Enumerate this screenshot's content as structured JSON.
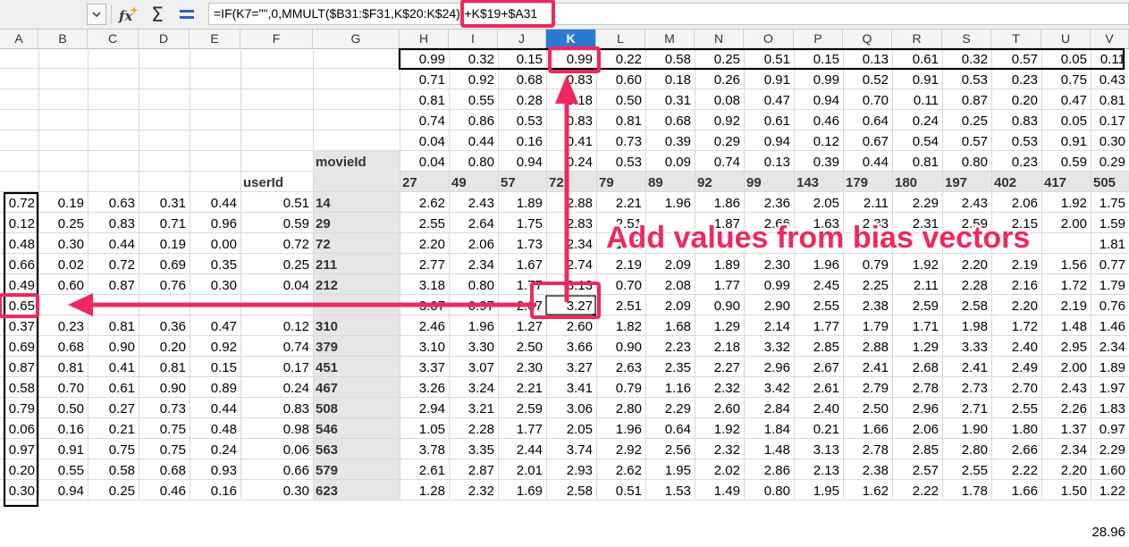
{
  "toolbar": {
    "formula": "=IF(K7=\"\",0,MMULT($B31:$F31,K$20:K$24))+K$19+$A31",
    "icons": [
      "name-box-dropdown-icon",
      "function-wizard-icon",
      "sum-icon",
      "formula-equals-icon"
    ]
  },
  "columns": [
    "A",
    "B",
    "C",
    "D",
    "E",
    "F",
    "G",
    "H",
    "I",
    "J",
    "K",
    "L",
    "M",
    "N",
    "O",
    "P",
    "Q",
    "R",
    "S",
    "T",
    "U",
    "V"
  ],
  "selected_column": "K",
  "labels": {
    "movie_id": "movieId",
    "user_id": "userId"
  },
  "movie_bias_row": [
    "0.99",
    "0.32",
    "0.15",
    "0.99",
    "0.22",
    "0.58",
    "0.25",
    "0.51",
    "0.15",
    "0.13",
    "0.61",
    "0.32",
    "0.57",
    "0.05",
    "0.11"
  ],
  "movie_factors": [
    [
      "0.71",
      "0.92",
      "0.68",
      "0.83",
      "0.60",
      "0.18",
      "0.26",
      "0.91",
      "0.99",
      "0.52",
      "0.91",
      "0.53",
      "0.23",
      "0.75",
      "0.43"
    ],
    [
      "0.81",
      "0.55",
      "0.28",
      "0.18",
      "0.50",
      "0.31",
      "0.08",
      "0.47",
      "0.94",
      "0.70",
      "0.11",
      "0.87",
      "0.20",
      "0.47",
      "0.81"
    ],
    [
      "0.74",
      "0.86",
      "0.53",
      "0.83",
      "0.81",
      "0.68",
      "0.92",
      "0.61",
      "0.46",
      "0.64",
      "0.24",
      "0.25",
      "0.83",
      "0.05",
      "0.17"
    ],
    [
      "0.04",
      "0.44",
      "0.16",
      "0.41",
      "0.73",
      "0.39",
      "0.29",
      "0.94",
      "0.12",
      "0.67",
      "0.54",
      "0.57",
      "0.53",
      "0.91",
      "0.30"
    ],
    [
      "0.04",
      "0.80",
      "0.94",
      "0.24",
      "0.53",
      "0.09",
      "0.74",
      "0.13",
      "0.39",
      "0.44",
      "0.81",
      "0.80",
      "0.23",
      "0.59",
      "0.29"
    ]
  ],
  "movie_ids": [
    "27",
    "49",
    "57",
    "72",
    "79",
    "89",
    "92",
    "99",
    "143",
    "179",
    "180",
    "197",
    "402",
    "417",
    "505"
  ],
  "user_rows": [
    {
      "A": "0.72",
      "B": "0.19",
      "C": "0.63",
      "D": "0.31",
      "E": "0.44",
      "F": "0.51",
      "id": "14",
      "pred": [
        "2.62",
        "2.43",
        "1.89",
        "2.88",
        "2.21",
        "1.96",
        "1.86",
        "2.36",
        "2.05",
        "2.11",
        "2.29",
        "2.43",
        "2.06",
        "1.92",
        "1.75"
      ]
    },
    {
      "A": "0.12",
      "B": "0.25",
      "C": "0.83",
      "D": "0.71",
      "E": "0.96",
      "F": "0.59",
      "id": "29",
      "pred": [
        "2.55",
        "2.64",
        "1.75",
        "2.83",
        "2.51",
        "",
        "1.87",
        "2.66",
        "1.63",
        "2.33",
        "2.31",
        "2.59",
        "2.15",
        "2.00",
        "1.59"
      ]
    },
    {
      "A": "0.48",
      "B": "0.30",
      "C": "0.44",
      "D": "0.19",
      "E": "0.00",
      "F": "0.72",
      "id": "72",
      "pred": [
        "2.20",
        "2.06",
        "1.73",
        "2.34",
        "1.93",
        "",
        "",
        "",
        "",
        "",
        "",
        "",
        "",
        "",
        "1.81"
      ]
    },
    {
      "A": "0.66",
      "B": "0.02",
      "C": "0.72",
      "D": "0.69",
      "E": "0.35",
      "F": "0.25",
      "id": "211",
      "pred": [
        "2.77",
        "2.34",
        "1.67",
        "2.74",
        "2.19",
        "2.09",
        "1.89",
        "2.30",
        "1.96",
        "0.79",
        "1.92",
        "2.20",
        "2.19",
        "1.56",
        "0.77"
      ]
    },
    {
      "A": "0.49",
      "B": "0.60",
      "C": "0.87",
      "D": "0.76",
      "E": "0.30",
      "F": "0.04",
      "id": "212",
      "pred": [
        "3.18",
        "0.80",
        "1.77",
        "3.13",
        "0.70",
        "2.08",
        "1.77",
        "0.99",
        "2.45",
        "2.25",
        "2.11",
        "2.28",
        "2.16",
        "1.72",
        "1.79"
      ]
    },
    {
      "A": "0.65",
      "B": "",
      "C": "",
      "D": "",
      "E": "",
      "F": "",
      "id": "",
      "pred": [
        "3.07",
        "0.97",
        "2.07",
        "3.27",
        "2.51",
        "2.09",
        "0.90",
        "2.90",
        "2.55",
        "2.38",
        "2.59",
        "2.58",
        "2.20",
        "2.19",
        "0.76"
      ]
    },
    {
      "A": "0.37",
      "B": "0.23",
      "C": "0.81",
      "D": "0.36",
      "E": "0.47",
      "F": "0.12",
      "id": "310",
      "pred": [
        "2.46",
        "1.96",
        "1.27",
        "2.60",
        "1.82",
        "1.68",
        "1.29",
        "2.14",
        "1.77",
        "1.79",
        "1.71",
        "1.98",
        "1.72",
        "1.48",
        "1.46"
      ]
    },
    {
      "A": "0.69",
      "B": "0.68",
      "C": "0.90",
      "D": "0.20",
      "E": "0.92",
      "F": "0.74",
      "id": "379",
      "pred": [
        "3.10",
        "3.30",
        "2.50",
        "3.66",
        "0.90",
        "2.23",
        "2.18",
        "3.32",
        "2.85",
        "2.88",
        "1.29",
        "3.33",
        "2.40",
        "2.95",
        "2.34"
      ]
    },
    {
      "A": "0.87",
      "B": "0.81",
      "C": "0.41",
      "D": "0.81",
      "E": "0.15",
      "F": "0.17",
      "id": "451",
      "pred": [
        "3.37",
        "3.07",
        "2.30",
        "3.27",
        "2.63",
        "2.35",
        "2.27",
        "2.96",
        "2.67",
        "2.41",
        "2.68",
        "2.41",
        "2.49",
        "2.00",
        "1.89"
      ]
    },
    {
      "A": "0.58",
      "B": "0.70",
      "C": "0.61",
      "D": "0.90",
      "E": "0.89",
      "F": "0.24",
      "id": "467",
      "pred": [
        "3.26",
        "3.24",
        "2.21",
        "3.41",
        "0.79",
        "1.16",
        "2.32",
        "3.42",
        "2.61",
        "2.79",
        "2.78",
        "2.73",
        "2.70",
        "2.43",
        "1.97"
      ]
    },
    {
      "A": "0.79",
      "B": "0.50",
      "C": "0.27",
      "D": "0.73",
      "E": "0.44",
      "F": "0.83",
      "id": "508",
      "pred": [
        "2.94",
        "3.21",
        "2.59",
        "3.06",
        "2.80",
        "2.29",
        "2.60",
        "2.84",
        "2.40",
        "2.50",
        "2.96",
        "2.71",
        "2.55",
        "2.26",
        "1.83"
      ]
    },
    {
      "A": "0.06",
      "B": "0.16",
      "C": "0.21",
      "D": "0.75",
      "E": "0.48",
      "F": "0.98",
      "id": "546",
      "pred": [
        "1.05",
        "2.28",
        "1.77",
        "2.05",
        "1.96",
        "0.64",
        "1.92",
        "1.84",
        "0.21",
        "1.66",
        "2.06",
        "1.90",
        "1.80",
        "1.37",
        "0.97"
      ]
    },
    {
      "A": "0.97",
      "B": "0.91",
      "C": "0.75",
      "D": "0.75",
      "E": "0.24",
      "F": "0.06",
      "id": "563",
      "pred": [
        "3.78",
        "3.35",
        "2.44",
        "3.74",
        "2.92",
        "2.56",
        "2.32",
        "1.48",
        "3.13",
        "2.78",
        "2.85",
        "2.80",
        "2.66",
        "2.34",
        "2.29"
      ]
    },
    {
      "A": "0.20",
      "B": "0.55",
      "C": "0.58",
      "D": "0.68",
      "E": "0.93",
      "F": "0.66",
      "id": "579",
      "pred": [
        "2.61",
        "2.87",
        "2.01",
        "2.93",
        "2.62",
        "1.95",
        "2.02",
        "2.86",
        "2.13",
        "2.38",
        "2.57",
        "2.55",
        "2.22",
        "2.20",
        "1.60"
      ]
    },
    {
      "A": "0.30",
      "B": "0.94",
      "C": "0.25",
      "D": "0.46",
      "E": "0.16",
      "F": "0.30",
      "id": "623",
      "pred": [
        "1.28",
        "2.32",
        "1.69",
        "2.58",
        "0.51",
        "1.53",
        "1.49",
        "0.80",
        "1.95",
        "1.62",
        "2.22",
        "1.78",
        "1.66",
        "1.50",
        "1.22"
      ]
    }
  ],
  "loss_value": "28.96",
  "annotation": "Add values from bias vectors",
  "accent_color": "#f0285f",
  "selection_color": "#2a7ad6"
}
